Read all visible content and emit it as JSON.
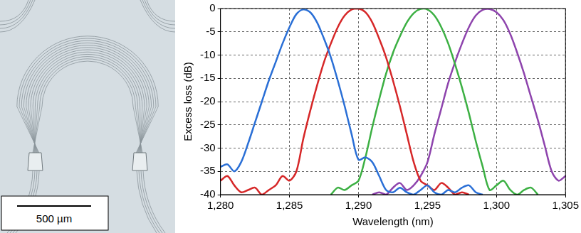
{
  "chart_data": {
    "type": "line",
    "x_label": "Wavelength (nm)",
    "y_label": "Excess loss (dB)",
    "xlim": [
      1280,
      1305
    ],
    "xticks": [
      1280,
      1285,
      1290,
      1295,
      1300,
      1305
    ],
    "ylim": [
      -40,
      0
    ],
    "yticks": [
      -40,
      -35,
      -30,
      -25,
      -20,
      -15,
      -10,
      -5,
      0
    ],
    "grid": true,
    "series": [
      {
        "color": "#2a6fd6",
        "x": [
          1280,
          1280.5,
          1281,
          1281.5,
          1282,
          1282.5,
          1283,
          1283.5,
          1284,
          1284.5,
          1285,
          1285.5,
          1286,
          1286.5,
          1287,
          1287.5,
          1288,
          1288.5,
          1289,
          1289.5,
          1290,
          1290.5,
          1291,
          1291.5,
          1292,
          1292.5,
          1293,
          1293.5,
          1294,
          1294.5,
          1295,
          1295.5,
          1296,
          1296.5,
          1297,
          1297.5,
          1298,
          1298.5,
          1299
        ],
        "values": [
          -34,
          -33.5,
          -35,
          -33,
          -29,
          -24.5,
          -20,
          -15.5,
          -11.5,
          -7.5,
          -4,
          -1.2,
          -0.2,
          -0.8,
          -3,
          -6.5,
          -10.5,
          -15.5,
          -21,
          -27,
          -32.5,
          -32,
          -33,
          -36,
          -39,
          -39.5,
          -38.5,
          -39.5,
          -40,
          -39,
          -38,
          -39.5,
          -40,
          -39,
          -39.5,
          -38.5,
          -38,
          -39.5,
          -40
        ]
      },
      {
        "color": "#d62728",
        "x": [
          1280,
          1280.5,
          1281,
          1281.5,
          1282,
          1282.5,
          1283,
          1283.5,
          1284,
          1284.5,
          1285,
          1285.5,
          1286,
          1286.5,
          1287,
          1287.5,
          1288,
          1288.5,
          1289,
          1289.5,
          1290,
          1290.5,
          1291,
          1291.5,
          1292,
          1292.5,
          1293,
          1293.5,
          1294,
          1294.5,
          1295,
          1295.5,
          1296,
          1296.5,
          1297,
          1297.5,
          1298
        ],
        "values": [
          -37,
          -36,
          -38,
          -39.5,
          -39,
          -38.5,
          -40,
          -39,
          -38,
          -36,
          -37,
          -35,
          -28,
          -22,
          -16.5,
          -11.5,
          -7.5,
          -4,
          -1.5,
          -0.2,
          0,
          -0.8,
          -3,
          -6.5,
          -10.5,
          -15.5,
          -21,
          -27,
          -33,
          -37,
          -38,
          -39,
          -37.5,
          -38.5,
          -40,
          -39.5,
          -40
        ]
      },
      {
        "color": "#3cb043",
        "x": [
          1288,
          1288.5,
          1289,
          1289.5,
          1290,
          1290.5,
          1291,
          1291.5,
          1292,
          1292.5,
          1293,
          1293.5,
          1294,
          1294.5,
          1295,
          1295.5,
          1296,
          1296.5,
          1297,
          1297.5,
          1298,
          1298.5,
          1299,
          1299.5,
          1300,
          1300.5,
          1301,
          1301.5,
          1302,
          1302.5,
          1303
        ],
        "values": [
          -40,
          -38.5,
          -39,
          -38,
          -37,
          -32,
          -25.5,
          -19.5,
          -14,
          -9.5,
          -6,
          -3,
          -1,
          -0.1,
          -0.2,
          -1.5,
          -4,
          -7.5,
          -12,
          -17,
          -22.5,
          -28.5,
          -34,
          -39,
          -38,
          -37,
          -39,
          -40,
          -39,
          -38.5,
          -40
        ]
      },
      {
        "color": "#8e44ad",
        "x": [
          1291,
          1291.5,
          1292,
          1292.5,
          1293,
          1293.5,
          1294,
          1294.5,
          1295,
          1295.5,
          1296,
          1296.5,
          1297,
          1297.5,
          1298,
          1298.5,
          1299,
          1299.5,
          1300,
          1300.5,
          1301,
          1301.5,
          1302,
          1302.5,
          1303,
          1303.5,
          1304,
          1304.5,
          1305
        ],
        "values": [
          -40,
          -39.5,
          -40,
          -38.5,
          -37.5,
          -39,
          -38,
          -36,
          -33,
          -27,
          -21.5,
          -16,
          -11.5,
          -7.5,
          -4,
          -1.5,
          -0.3,
          -0.1,
          -0.8,
          -2.5,
          -5.5,
          -9.5,
          -14,
          -19,
          -24,
          -29.5,
          -35,
          -37,
          -36
        ]
      }
    ]
  },
  "image": {
    "scale_bar": "500 µm"
  }
}
